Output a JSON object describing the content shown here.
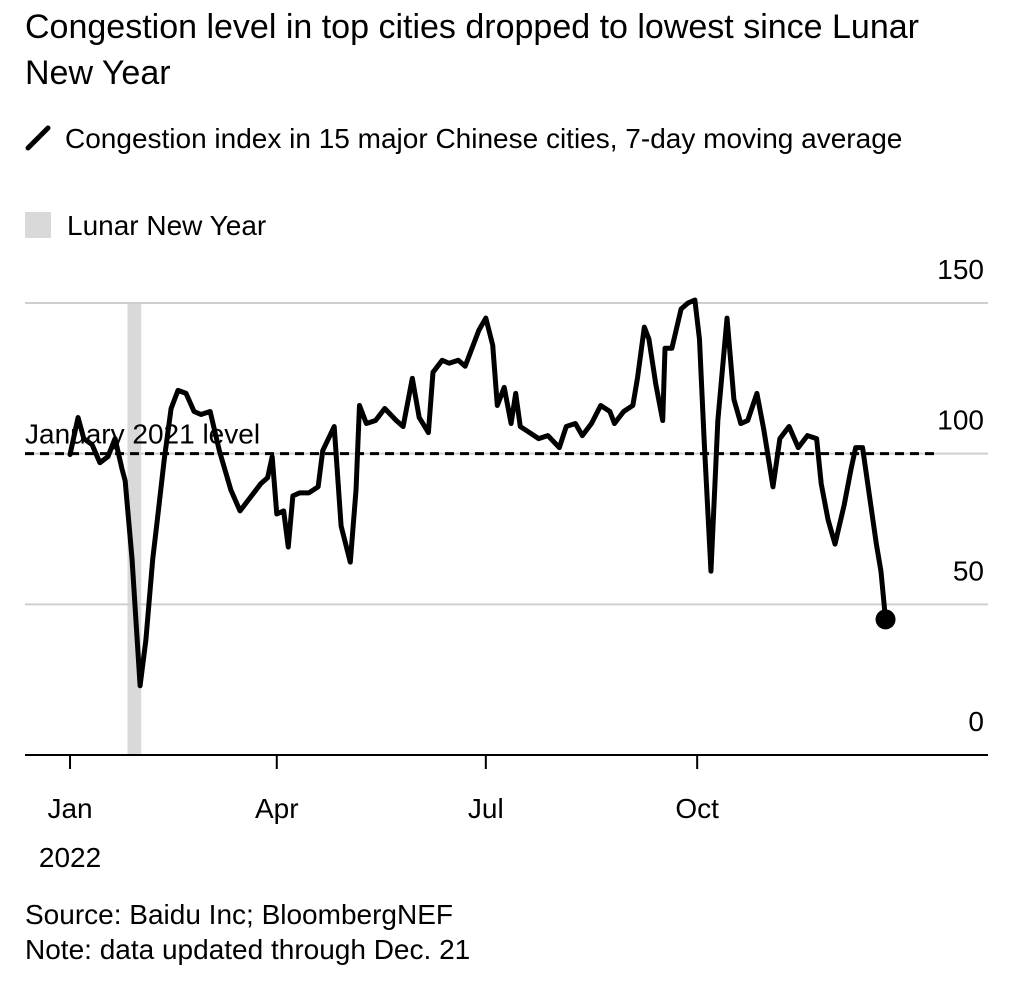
{
  "chart_data": {
    "type": "line",
    "title": "Congestion level in top cities dropped to lowest since Lunar New Year",
    "series": [
      {
        "name": "Congestion index in 15 major Chinese cities, 7-day moving average",
        "color": "#000000",
        "values": [
          99.7,
          112,
          105,
          103,
          97,
          99,
          105,
          95,
          91,
          65,
          23,
          38,
          65,
          78,
          98,
          115,
          121,
          120,
          114,
          113,
          114,
          101,
          88,
          81,
          85,
          90,
          92,
          99,
          80,
          81,
          69,
          86,
          87,
          87,
          89,
          101,
          109,
          76,
          64,
          88,
          116,
          110,
          111,
          115,
          111,
          109,
          125,
          112,
          107,
          127,
          131,
          130,
          131,
          129,
          135,
          141,
          145,
          136,
          116,
          122,
          110,
          120,
          109,
          107,
          105,
          106,
          102,
          109,
          110,
          106,
          110,
          116,
          114,
          110,
          114,
          116,
          125,
          142,
          138,
          123,
          111,
          135,
          135,
          148,
          150,
          151,
          138,
          105,
          61,
          111,
          145,
          118,
          110,
          111,
          120,
          108,
          89,
          105,
          109,
          102,
          106,
          105,
          90,
          78,
          70,
          83,
          95,
          102,
          102,
          86,
          70,
          61,
          45
        ]
      }
    ],
    "x": [
      1,
      4.5,
      7,
      10.6,
      14,
      17.5,
      20.6,
      23.6,
      25,
      28,
      31.5,
      34,
      37,
      39,
      42,
      45,
      48,
      51.5,
      55,
      58,
      62,
      66,
      71,
      75,
      79,
      84,
      87,
      89,
      91,
      94,
      96,
      98,
      101,
      105,
      109,
      111,
      116,
      119,
      123,
      125.5,
      127,
      130,
      134,
      138,
      143,
      146,
      150,
      153,
      157,
      159,
      163,
      166,
      170,
      173,
      176,
      179,
      182,
      185,
      187,
      190,
      193,
      195,
      197,
      201,
      205,
      209,
      214,
      217,
      221,
      224,
      228,
      232,
      236,
      238,
      242,
      246,
      248,
      251,
      253,
      256,
      259,
      260,
      263,
      267,
      270,
      273,
      275,
      277,
      280,
      283,
      287,
      290,
      293,
      296,
      300,
      303,
      307,
      310,
      314,
      318,
      322,
      326,
      328,
      331,
      334,
      338,
      341,
      343,
      346,
      349,
      352,
      354,
      356
    ],
    "xlim": [
      -18.6,
      400.6
    ],
    "xticks": [
      {
        "value": 1,
        "label": "Jan"
      },
      {
        "value": 91,
        "label": "Apr"
      },
      {
        "value": 182,
        "label": "Jul"
      },
      {
        "value": 274,
        "label": "Oct"
      }
    ],
    "x_year_label": "2022",
    "ylim": [
      0,
      150
    ],
    "yticks": [
      0,
      50,
      100,
      150
    ],
    "grid": true,
    "reference_line": {
      "label": "January 2021 level",
      "value": 100
    },
    "shaded_span": {
      "label": "Lunar New Year",
      "x": [
        26,
        32
      ],
      "color": "#d9d9d9"
    },
    "source": "Source: Baidu Inc; BloombergNEF",
    "note": "Note: data updated through Dec. 21"
  }
}
